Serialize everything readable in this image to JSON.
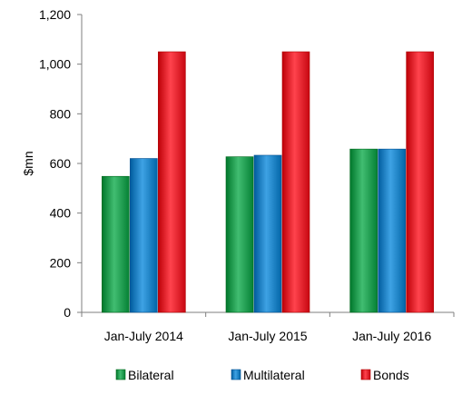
{
  "chart_data": {
    "type": "bar",
    "title": "",
    "xlabel": "",
    "ylabel": "$mn",
    "ylim": [
      0,
      1200
    ],
    "yticks": [
      0,
      200,
      400,
      600,
      800,
      1000,
      1200
    ],
    "ytick_labels": [
      "0",
      "200",
      "400",
      "600",
      "800",
      "1,000",
      "1,200"
    ],
    "grid": false,
    "legend_position": "bottom",
    "categories": [
      "Jan-July 2014",
      "Jan-July 2015",
      "Jan-July 2016"
    ],
    "series": [
      {
        "name": "Bilateral",
        "color": "#1e9a4e",
        "values": [
          548,
          627,
          658
        ]
      },
      {
        "name": "Multilateral",
        "color": "#1b7fc1",
        "values": [
          620,
          633,
          658
        ]
      },
      {
        "name": "Bonds",
        "color": "#e0202a",
        "values": [
          1050,
          1050,
          1050
        ]
      }
    ]
  }
}
